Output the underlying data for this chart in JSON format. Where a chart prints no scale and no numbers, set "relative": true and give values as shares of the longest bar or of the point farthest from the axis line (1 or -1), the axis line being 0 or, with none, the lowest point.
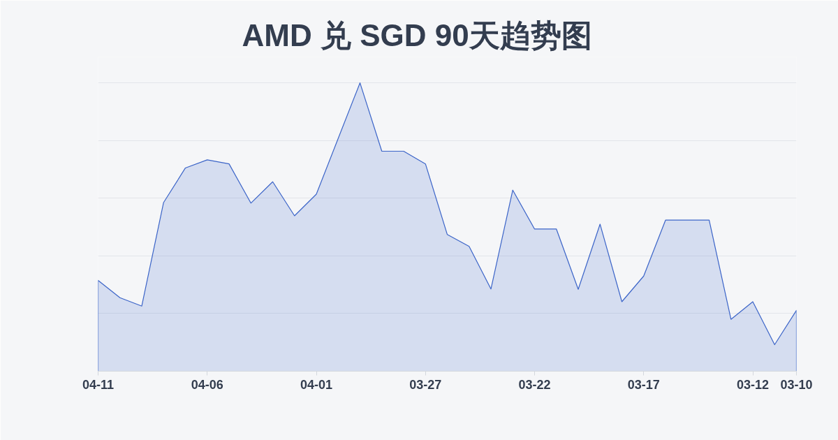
{
  "chart_data": {
    "type": "area",
    "title": "AMD 兑 SGD 90天趋势图",
    "relative": true,
    "grid": "y",
    "categories": [
      "04-11",
      null,
      null,
      null,
      null,
      "04-06",
      null,
      null,
      null,
      null,
      "04-01",
      null,
      null,
      null,
      null,
      "03-27",
      null,
      null,
      null,
      null,
      "03-22",
      null,
      null,
      null,
      null,
      "03-17",
      null,
      null,
      null,
      null,
      "03-12",
      null,
      "03-10"
    ],
    "series": [
      {
        "color": "#3b64c8",
        "values": [
          0.315,
          0.255,
          0.226,
          0.585,
          0.705,
          0.733,
          0.719,
          0.583,
          0.657,
          0.539,
          0.614,
          0.807,
          1,
          0.763,
          0.763,
          0.719,
          0.474,
          0.433,
          0.285,
          0.628,
          0.493,
          0.493,
          0.284,
          0.51,
          0.241,
          0.33,
          0.524,
          0.524,
          0.524,
          0.18,
          0.241,
          0.092,
          0.211
        ]
      }
    ]
  }
}
